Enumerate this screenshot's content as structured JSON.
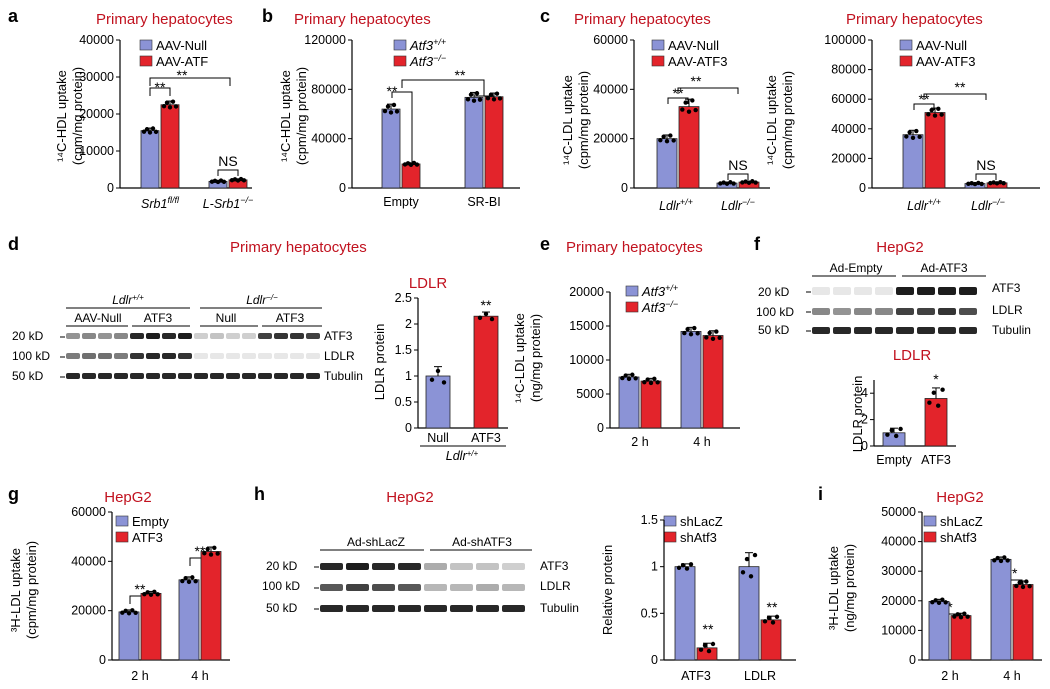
{
  "colors": {
    "null": "#8b93d6",
    "treat": "#e3242b",
    "title": "#c1121f"
  },
  "panels": {
    "a": {
      "letter": "a",
      "title": "Primary hepatocytes",
      "ylabel": "¹⁴C-HDL uptake",
      "ylabel2": "(cpm/mg protein)",
      "cat_main": [
        "Srb1",
        "L-Srb1"
      ],
      "cat_sup": [
        "fl/fl",
        "−/−"
      ],
      "leg1": "AAV-Null",
      "leg2": "AAV-ATF",
      "sig": [
        "**",
        "**",
        "NS"
      ]
    },
    "b": {
      "letter": "b",
      "title": "Primary hepatocytes",
      "ylabel": "¹⁴C-HDL uptake",
      "ylabel2": "(cpm/mg protein)",
      "cats": [
        "Empty",
        "SR-BI"
      ],
      "leg1": "Atf3",
      "leg1_sup": "+/+",
      "leg2": "Atf3",
      "leg2_sup": "−/−",
      "sig": [
        "**",
        "**"
      ]
    },
    "c1": {
      "letter": "c",
      "title": "Primary hepatocytes",
      "ylabel": "¹⁴C-LDL uptake",
      "ylabel2": "(cpm/mg protein)",
      "cat_main": [
        "Ldlr",
        "Ldlr"
      ],
      "cat_sup": [
        "+/+",
        "−/−"
      ],
      "leg1": "AAV-Null",
      "leg2": "AAV-ATF3",
      "sig": [
        "**",
        "**",
        "NS"
      ]
    },
    "c2": {
      "title": "Primary hepatocytes",
      "ylabel": "¹⁴C-LDL uptake",
      "ylabel2": "(cpm/mg protein)",
      "cat_main": [
        "Ldlr",
        "Ldlr"
      ],
      "cat_sup": [
        "+/+",
        "−/−"
      ],
      "leg1": "AAV-Null",
      "leg2": "AAV-ATF3",
      "sig": [
        "**",
        "**",
        "NS"
      ]
    },
    "d": {
      "letter": "d",
      "title": "Primary hepatocytes",
      "blot_header1": "Ldlr",
      "blot_header1_sup": "+/+",
      "blot_header2": "Ldlr",
      "blot_header2_sup": "−/−",
      "lanes": [
        "AAV-Null",
        "ATF3",
        "Null",
        "ATF3"
      ],
      "markers": [
        "20 kD",
        "100 kD",
        "50 kD"
      ],
      "bands": [
        "ATF3",
        "LDLR",
        "Tubulin"
      ],
      "quant_title": "LDLR",
      "quant_ylabel": "LDLR protein",
      "quant_cats": [
        "Null",
        "ATF3"
      ],
      "quant_group": "Ldlr",
      "quant_group_sup": "+/+",
      "sig": "**"
    },
    "e": {
      "letter": "e",
      "title": "Primary hepatocytes",
      "ylabel": "¹⁴C-LDL uptake",
      "ylabel2": "(ng/mg protein)",
      "cats": [
        "2 h",
        "4 h"
      ],
      "leg1": "Atf3",
      "leg1_sup": "+/+",
      "leg2": "Atf3",
      "leg2_sup": "−/−"
    },
    "f": {
      "letter": "f",
      "title": "HepG2",
      "lanes": [
        "Ad-Empty",
        "Ad-ATF3"
      ],
      "markers": [
        "20 kD",
        "100 kD",
        "50 kD"
      ],
      "bands": [
        "ATF3",
        "LDLR",
        "Tubulin"
      ],
      "quant_title": "LDLR",
      "quant_ylabel": "LDLR protein",
      "quant_cats": [
        "Empty",
        "ATF3"
      ],
      "sig": "*"
    },
    "g": {
      "letter": "g",
      "title": "HepG2",
      "ylabel": "³H-LDL uptake",
      "ylabel2": "(cpm/mg protein)",
      "cats": [
        "2 h",
        "4 h"
      ],
      "leg1": "Empty",
      "leg2": "ATF3",
      "sig": [
        "**",
        "**"
      ]
    },
    "h": {
      "letter": "h",
      "title": "HepG2",
      "lanes": [
        "Ad-shLacZ",
        "Ad-shATF3"
      ],
      "markers": [
        "20 kD",
        "100 kD",
        "50 kD"
      ],
      "bands": [
        "ATF3",
        "LDLR",
        "Tubulin"
      ],
      "quant_ylabel": "Relative protein",
      "quant_cats": [
        "ATF3",
        "LDLR"
      ],
      "leg1": "shLacZ",
      "leg2": "shAtf3",
      "sig": [
        "**",
        "**"
      ]
    },
    "i": {
      "letter": "i",
      "title": "HepG2",
      "ylabel": "³H-LDL uptake",
      "ylabel2": "(ng/mg protein)",
      "cats": [
        "2 h",
        "4 h"
      ],
      "leg1": "shLacZ",
      "leg2": "shAtf3",
      "sig": [
        "*",
        "**"
      ]
    }
  },
  "chart_data": [
    {
      "id": "a",
      "type": "bar",
      "categories": [
        "Srb1 fl/fl",
        "L-Srb1 −/−"
      ],
      "ylim": [
        0,
        40000
      ],
      "yticks": [
        0,
        10000,
        20000,
        30000,
        40000
      ],
      "series": [
        {
          "name": "AAV-Null",
          "values": [
            15500,
            1800
          ],
          "errors": [
            700,
            250
          ]
        },
        {
          "name": "AAV-ATF",
          "values": [
            22500,
            2200
          ],
          "errors": [
            1000,
            250
          ]
        }
      ]
    },
    {
      "id": "b",
      "type": "bar",
      "categories": [
        "Empty",
        "SR-BI"
      ],
      "ylim": [
        0,
        120000
      ],
      "yticks": [
        0,
        40000,
        80000,
        120000
      ],
      "series": [
        {
          "name": "Atf3 +/+",
          "values": [
            64000,
            73500
          ],
          "errors": [
            4000,
            4000
          ]
        },
        {
          "name": "Atf3 −/−",
          "values": [
            19500,
            74000
          ],
          "errors": [
            1000,
            3000
          ]
        }
      ]
    },
    {
      "id": "c1",
      "type": "bar",
      "categories": [
        "Ldlr +/+",
        "Ldlr −/−"
      ],
      "ylim": [
        0,
        60000
      ],
      "yticks": [
        0,
        20000,
        40000,
        60000
      ],
      "series": [
        {
          "name": "AAV-Null",
          "values": [
            20000,
            2000
          ],
          "errors": [
            1500,
            400
          ]
        },
        {
          "name": "AAV-ATF3",
          "values": [
            33000,
            2400
          ],
          "errors": [
            3000,
            400
          ]
        }
      ]
    },
    {
      "id": "c2",
      "type": "bar",
      "categories": [
        "Ldlr +/+",
        "Ldlr −/−"
      ],
      "ylim": [
        0,
        100000
      ],
      "yticks": [
        0,
        20000,
        40000,
        60000,
        80000,
        100000
      ],
      "series": [
        {
          "name": "AAV-Null",
          "values": [
            36000,
            3000
          ],
          "errors": [
            3000,
            500
          ]
        },
        {
          "name": "AAV-ATF3",
          "values": [
            51000,
            3500
          ],
          "errors": [
            3000,
            500
          ]
        }
      ]
    },
    {
      "id": "d",
      "type": "bar",
      "title": "LDLR",
      "categories": [
        "Null",
        "ATF3"
      ],
      "ylim": [
        0,
        2.5
      ],
      "yticks": [
        0,
        0.5,
        1.0,
        1.5,
        2.0,
        2.5
      ],
      "series": [
        {
          "name": "LDLR protein",
          "values": [
            1.0,
            2.15
          ],
          "errors": [
            0.18,
            0.08
          ]
        }
      ]
    },
    {
      "id": "e",
      "type": "bar",
      "categories": [
        "2 h",
        "4 h"
      ],
      "ylim": [
        0,
        20000
      ],
      "yticks": [
        0,
        5000,
        10000,
        15000,
        20000
      ],
      "series": [
        {
          "name": "Atf3 +/+",
          "values": [
            7500,
            14200
          ],
          "errors": [
            400,
            600
          ]
        },
        {
          "name": "Atf3 −/−",
          "values": [
            6900,
            13600
          ],
          "errors": [
            400,
            700
          ]
        }
      ]
    },
    {
      "id": "f",
      "type": "bar",
      "title": "LDLR",
      "categories": [
        "Empty",
        "ATF3"
      ],
      "ylim": [
        0,
        5
      ],
      "yticks": [
        0,
        2,
        4
      ],
      "series": [
        {
          "name": "LDLR protein",
          "values": [
            1.0,
            3.6
          ],
          "errors": [
            0.35,
            0.8
          ]
        }
      ]
    },
    {
      "id": "g",
      "type": "bar",
      "categories": [
        "2 h",
        "4 h"
      ],
      "ylim": [
        0,
        60000
      ],
      "yticks": [
        0,
        20000,
        40000,
        60000
      ],
      "series": [
        {
          "name": "Empty",
          "values": [
            19500,
            32500
          ],
          "errors": [
            800,
            1200
          ]
        },
        {
          "name": "ATF3",
          "values": [
            27000,
            44000
          ],
          "errors": [
            800,
            1800
          ]
        }
      ]
    },
    {
      "id": "h",
      "type": "bar",
      "categories": [
        "ATF3",
        "LDLR"
      ],
      "ylim": [
        0,
        1.5
      ],
      "yticks": [
        0,
        0.5,
        1.0,
        1.5
      ],
      "series": [
        {
          "name": "shLacZ",
          "values": [
            1.0,
            1.0
          ],
          "errors": [
            0.03,
            0.15
          ]
        },
        {
          "name": "shAtf3",
          "values": [
            0.13,
            0.43
          ],
          "errors": [
            0.05,
            0.04
          ]
        }
      ]
    },
    {
      "id": "i",
      "type": "bar",
      "categories": [
        "2 h",
        "4 h"
      ],
      "ylim": [
        0,
        50000
      ],
      "yticks": [
        0,
        10000,
        20000,
        30000,
        40000,
        50000
      ],
      "series": [
        {
          "name": "shLacZ",
          "values": [
            19800,
            34000
          ],
          "errors": [
            700,
            800
          ]
        },
        {
          "name": "shAtf3",
          "values": [
            15000,
            25500
          ],
          "errors": [
            800,
            1200
          ]
        }
      ]
    }
  ]
}
